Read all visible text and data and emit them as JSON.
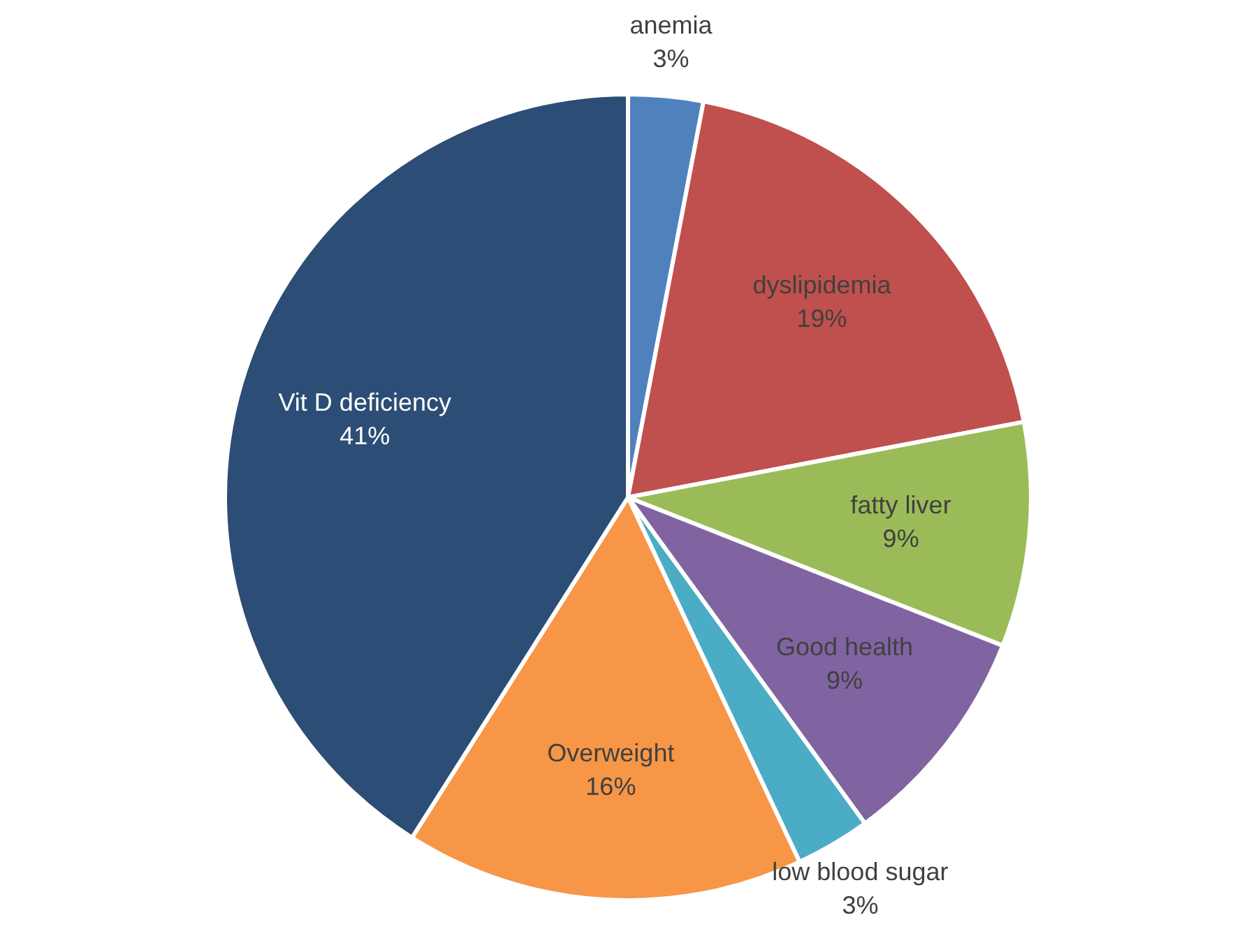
{
  "chart_data": {
    "type": "pie",
    "categories": [
      "anemia",
      "dyslipidemia",
      "fatty liver",
      "Good health",
      "low blood sugar",
      "Overweight",
      "Vit D deficiency"
    ],
    "values": [
      3,
      19,
      9,
      9,
      3,
      16,
      41
    ],
    "colors": [
      "#4f81bd",
      "#c0504d",
      "#9bbb59",
      "#8064a2",
      "#4bacc6",
      "#f79646",
      "#2c4d75"
    ],
    "value_labels": [
      "3%",
      "19%",
      "9%",
      "9%",
      "3%",
      "16%",
      "41%"
    ],
    "legend": false
  }
}
